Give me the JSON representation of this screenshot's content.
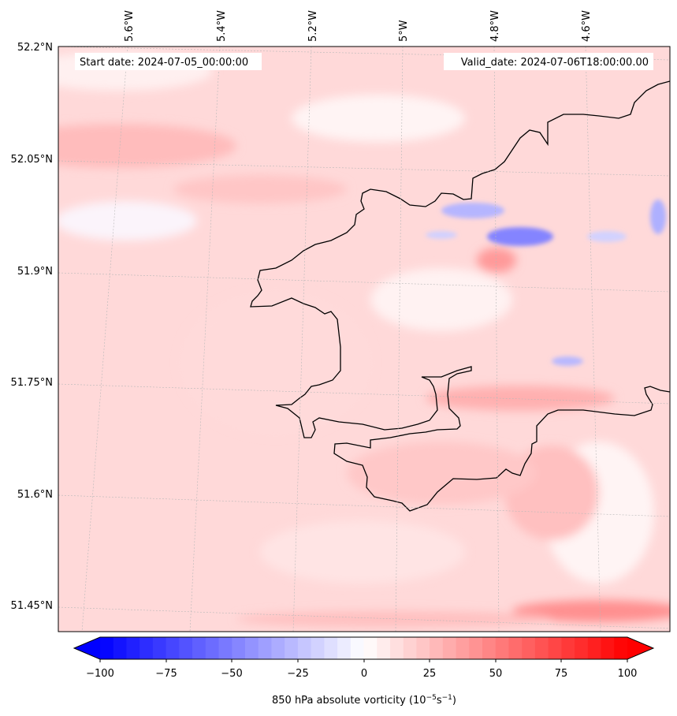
{
  "map": {
    "start_label": "Start date: 2024-07-05_00:00:00",
    "valid_label": "Valid_date: 2024-07-06T18:00:00.00",
    "variable_label": "850 hPa absolute vorticity (10",
    "unit_exp_1": "−5",
    "unit_mid": "s",
    "unit_exp_2": "−1",
    "unit_close": ")",
    "lon_ticks": [
      "5.6°W",
      "5.4°W",
      "5.2°W",
      "5°W",
      "4.8°W",
      "4.6°W"
    ],
    "lat_ticks": [
      "52.2°N",
      "52.05°N",
      "51.9°N",
      "51.75°N",
      "51.6°N",
      "51.45°N"
    ],
    "colorbar_ticks": [
      "−100",
      "−75",
      "−50",
      "−25",
      "0",
      "25",
      "50",
      "75",
      "100"
    ],
    "colormap": "bwr",
    "colors": {
      "blue": "#0000ff",
      "white": "#ffffff",
      "red": "#ff0000",
      "coast": "#000000"
    },
    "colorbar_extend": "both",
    "gridlines": true
  }
}
